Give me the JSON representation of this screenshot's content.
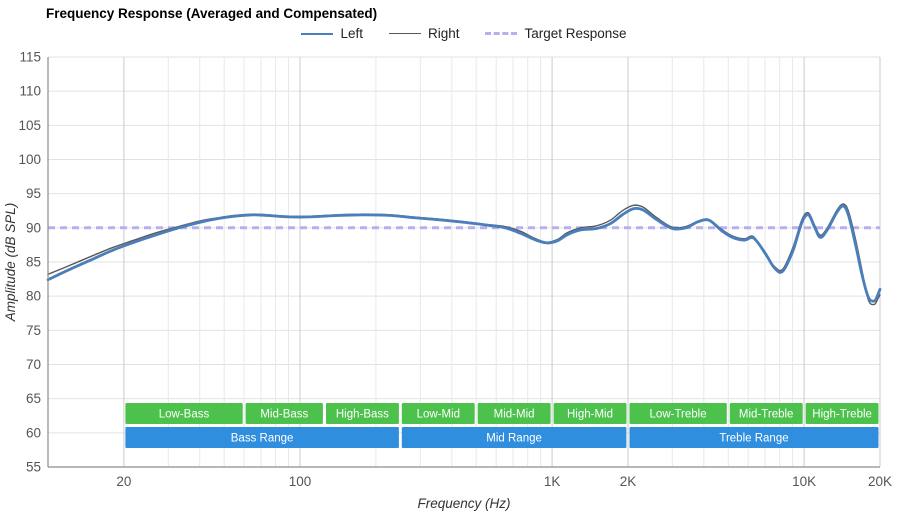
{
  "chart_data": {
    "type": "line",
    "title": "Frequency Response (Averaged and Compensated)",
    "xlabel": "Frequency (Hz)",
    "ylabel": "Amplitude (dB SPL)",
    "x_scale": "log",
    "xlim": [
      10,
      20000
    ],
    "ylim": [
      55,
      115
    ],
    "y_ticks": [
      55,
      60,
      65,
      70,
      75,
      80,
      85,
      90,
      95,
      100,
      105,
      110,
      115
    ],
    "x_ticks": [
      {
        "value": 20,
        "label": "20"
      },
      {
        "value": 100,
        "label": "100"
      },
      {
        "value": 1000,
        "label": "1K"
      },
      {
        "value": 2000,
        "label": "2K"
      },
      {
        "value": 10000,
        "label": "10K"
      },
      {
        "value": 20000,
        "label": "20K"
      }
    ],
    "series": [
      {
        "name": "Left",
        "color": "#4a7fbb",
        "width": 2.8,
        "style": "solid",
        "points": [
          [
            10,
            82.4
          ],
          [
            12,
            83.8
          ],
          [
            15,
            85.4
          ],
          [
            18,
            86.7
          ],
          [
            22,
            87.9
          ],
          [
            27,
            89.0
          ],
          [
            33,
            90.0
          ],
          [
            40,
            90.8
          ],
          [
            48,
            91.4
          ],
          [
            55,
            91.7
          ],
          [
            65,
            91.9
          ],
          [
            75,
            91.8
          ],
          [
            90,
            91.6
          ],
          [
            110,
            91.6
          ],
          [
            140,
            91.8
          ],
          [
            180,
            91.9
          ],
          [
            230,
            91.8
          ],
          [
            280,
            91.5
          ],
          [
            350,
            91.2
          ],
          [
            450,
            90.8
          ],
          [
            550,
            90.4
          ],
          [
            650,
            90.0
          ],
          [
            750,
            89.2
          ],
          [
            850,
            88.3
          ],
          [
            950,
            87.8
          ],
          [
            1050,
            88.1
          ],
          [
            1150,
            89.0
          ],
          [
            1300,
            89.7
          ],
          [
            1500,
            89.9
          ],
          [
            1700,
            90.6
          ],
          [
            1900,
            91.9
          ],
          [
            2100,
            92.8
          ],
          [
            2300,
            92.6
          ],
          [
            2600,
            91.2
          ],
          [
            3000,
            89.9
          ],
          [
            3400,
            90.0
          ],
          [
            3800,
            90.9
          ],
          [
            4200,
            91.1
          ],
          [
            4700,
            89.6
          ],
          [
            5200,
            88.6
          ],
          [
            5800,
            88.2
          ],
          [
            6300,
            88.5
          ],
          [
            7000,
            86.3
          ],
          [
            7600,
            84.2
          ],
          [
            8200,
            83.6
          ],
          [
            9000,
            86.5
          ],
          [
            9800,
            90.8
          ],
          [
            10400,
            91.9
          ],
          [
            11000,
            90.1
          ],
          [
            11600,
            88.6
          ],
          [
            12400,
            89.8
          ],
          [
            13500,
            92.3
          ],
          [
            14300,
            93.2
          ],
          [
            15000,
            91.8
          ],
          [
            16000,
            87.5
          ],
          [
            17000,
            83.0
          ],
          [
            18000,
            79.8
          ],
          [
            19000,
            79.3
          ],
          [
            19600,
            80.2
          ],
          [
            20000,
            81.0
          ]
        ]
      },
      {
        "name": "Right",
        "color": "#58595b",
        "width": 1.4,
        "style": "solid",
        "points": [
          [
            10,
            83.2
          ],
          [
            12,
            84.4
          ],
          [
            15,
            85.9
          ],
          [
            18,
            87.1
          ],
          [
            22,
            88.2
          ],
          [
            27,
            89.3
          ],
          [
            33,
            90.2
          ],
          [
            40,
            91.0
          ],
          [
            48,
            91.5
          ],
          [
            55,
            91.8
          ],
          [
            65,
            92.0
          ],
          [
            75,
            91.9
          ],
          [
            90,
            91.7
          ],
          [
            110,
            91.7
          ],
          [
            140,
            91.9
          ],
          [
            180,
            92.0
          ],
          [
            230,
            91.9
          ],
          [
            280,
            91.6
          ],
          [
            350,
            91.3
          ],
          [
            450,
            90.9
          ],
          [
            550,
            90.5
          ],
          [
            650,
            90.2
          ],
          [
            750,
            89.5
          ],
          [
            850,
            88.5
          ],
          [
            950,
            87.9
          ],
          [
            1050,
            88.3
          ],
          [
            1150,
            89.3
          ],
          [
            1300,
            90.0
          ],
          [
            1500,
            90.3
          ],
          [
            1700,
            91.1
          ],
          [
            1900,
            92.5
          ],
          [
            2100,
            93.3
          ],
          [
            2300,
            93.0
          ],
          [
            2600,
            91.5
          ],
          [
            3000,
            90.1
          ],
          [
            3400,
            90.2
          ],
          [
            3800,
            91.0
          ],
          [
            4200,
            91.2
          ],
          [
            4700,
            89.8
          ],
          [
            5200,
            88.8
          ],
          [
            5800,
            88.4
          ],
          [
            6300,
            88.7
          ],
          [
            7000,
            86.1
          ],
          [
            7600,
            84.4
          ],
          [
            8200,
            83.9
          ],
          [
            9000,
            87.0
          ],
          [
            9800,
            91.2
          ],
          [
            10400,
            92.2
          ],
          [
            11000,
            90.4
          ],
          [
            11600,
            88.9
          ],
          [
            12400,
            90.1
          ],
          [
            13500,
            92.6
          ],
          [
            14300,
            93.5
          ],
          [
            15000,
            92.4
          ],
          [
            16000,
            88.3
          ],
          [
            17000,
            83.6
          ],
          [
            18000,
            79.4
          ],
          [
            19000,
            78.8
          ],
          [
            19600,
            79.6
          ],
          [
            20000,
            80.2
          ]
        ]
      },
      {
        "name": "Target Response",
        "color": "#b8aff0",
        "width": 3,
        "style": "dashed",
        "value": 90
      }
    ],
    "bands": {
      "sub_color": "#4cc24c",
      "main_color": "#2f8ede",
      "sub": [
        {
          "label": "Low-Bass",
          "from": 20,
          "to": 60
        },
        {
          "label": "Mid-Bass",
          "from": 60,
          "to": 125
        },
        {
          "label": "High-Bass",
          "from": 125,
          "to": 250
        },
        {
          "label": "Low-Mid",
          "from": 250,
          "to": 500
        },
        {
          "label": "Mid-Mid",
          "from": 500,
          "to": 1000
        },
        {
          "label": "High-Mid",
          "from": 1000,
          "to": 2000
        },
        {
          "label": "Low-Treble",
          "from": 2000,
          "to": 5000
        },
        {
          "label": "Mid-Treble",
          "from": 5000,
          "to": 10000
        },
        {
          "label": "High-Treble",
          "from": 10000,
          "to": 20000
        }
      ],
      "main": [
        {
          "label": "Bass Range",
          "from": 20,
          "to": 250
        },
        {
          "label": "Mid Range",
          "from": 250,
          "to": 2000
        },
        {
          "label": "Treble Range",
          "from": 2000,
          "to": 20000
        }
      ]
    },
    "grid": {
      "h_color": "#e2e2e2",
      "minor_color": "#e8e8e8",
      "major_color": "#cccccc",
      "axis_color": "#8c8c8c",
      "tick_text_color": "#555555",
      "axis_title_color": "#333333"
    }
  }
}
